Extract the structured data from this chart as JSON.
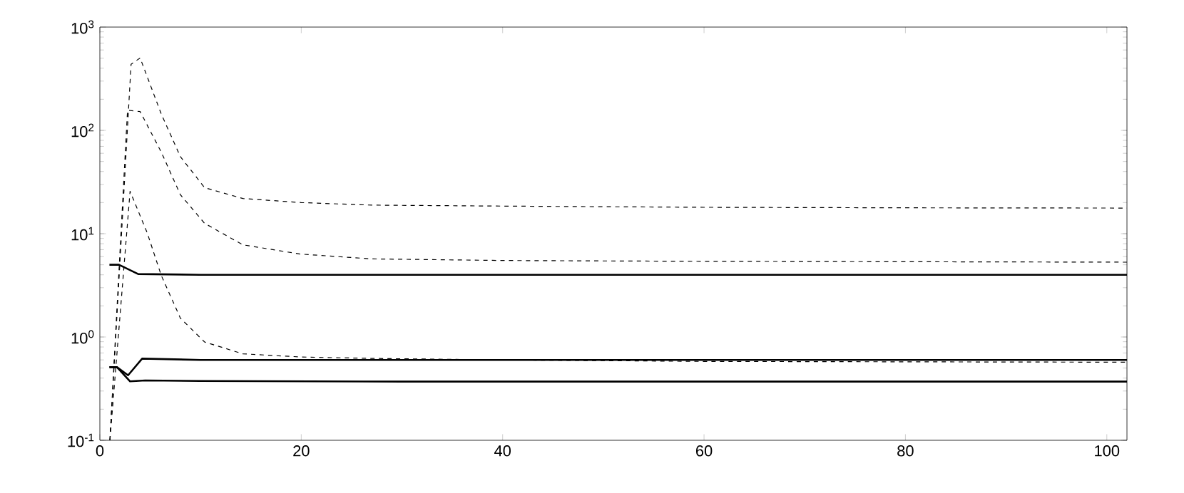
{
  "chart_data": {
    "type": "line",
    "log": "y",
    "marker": "none",
    "xlim": [
      0,
      102
    ],
    "ylim": [
      0.1,
      1000
    ],
    "xticks": [
      0,
      20,
      40,
      60,
      80,
      100
    ],
    "yticks": [
      {
        "value": 0.1,
        "label": "10$^{-1}$"
      },
      {
        "value": 1,
        "label": "10$^{0}$"
      },
      {
        "value": 10,
        "label": "10$^{1}$"
      },
      {
        "value": 100,
        "label": "10$^{2}$"
      },
      {
        "value": 1000,
        "label": "10$^{3}$"
      }
    ],
    "series": [
      {
        "color": "#000000",
        "line_style": "dashed",
        "x": [
          1.0,
          3.1,
          4.0,
          6.1,
          8.0,
          10.4,
          14.2,
          20,
          27,
          40,
          60,
          80,
          102
        ],
        "values": [
          0.1,
          437,
          502,
          144,
          55.6,
          27.9,
          21.9,
          20,
          18.9,
          18.5,
          18,
          17.8,
          17.7
        ]
      },
      {
        "color": "#000000",
        "line_style": "dashed",
        "x": [
          1.0,
          2.75,
          4.0,
          6.1,
          8.0,
          10.4,
          14.2,
          19.9,
          27,
          40,
          60,
          80,
          102
        ],
        "values": [
          0.1,
          157,
          152,
          61.6,
          23.8,
          12.6,
          7.8,
          6.35,
          5.7,
          5.5,
          5.4,
          5.35,
          5.3
        ]
      },
      {
        "color": "#000000",
        "line_style": "dashed",
        "x": [
          1.0,
          3.0,
          4.7,
          6.1,
          8.0,
          10.4,
          14.2,
          20,
          27,
          40,
          60,
          80,
          102
        ],
        "values": [
          0.1,
          25.7,
          10.2,
          3.94,
          1.52,
          0.895,
          0.687,
          0.64,
          0.62,
          0.6,
          0.58,
          0.575,
          0.57
        ]
      },
      {
        "color": "#000000",
        "line_style": "solid",
        "x": [
          0.95,
          1.9,
          3.8,
          10,
          30,
          60,
          102
        ],
        "values": [
          5.0,
          5.0,
          4.07,
          4.0,
          4.0,
          4.0,
          4.0
        ]
      },
      {
        "color": "#000000",
        "line_style": "solid",
        "x": [
          0.95,
          1.7,
          2.8,
          4.2,
          10,
          30,
          60,
          102
        ],
        "values": [
          0.51,
          0.51,
          0.426,
          0.617,
          0.6,
          0.6,
          0.6,
          0.6
        ]
      },
      {
        "color": "#000000",
        "line_style": "solid",
        "x": [
          0.95,
          1.7,
          3.0,
          4.5,
          10,
          30,
          60,
          102
        ],
        "values": [
          0.51,
          0.51,
          0.372,
          0.38,
          0.375,
          0.37,
          0.37,
          0.37
        ]
      }
    ]
  }
}
